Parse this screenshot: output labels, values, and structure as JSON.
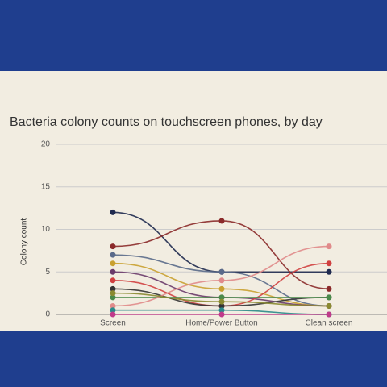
{
  "chart_data": {
    "type": "line",
    "title": "Bacteria colony counts on touchscreen phones, by day",
    "y_label": "Colony count",
    "categories": [
      "Screen",
      "Home/Power Button",
      "Clean screen"
    ],
    "ylim": [
      0,
      20
    ],
    "yticks": [
      0,
      5,
      10,
      15,
      20
    ],
    "grid": true,
    "series": [
      {
        "color": "#1f2a4f",
        "values": [
          12,
          5,
          5
        ]
      },
      {
        "color": "#8b2a2a",
        "values": [
          8,
          11,
          3
        ]
      },
      {
        "color": "#5a6a8a",
        "values": [
          7,
          5,
          1
        ]
      },
      {
        "color": "#c9a030",
        "values": [
          6,
          3,
          1
        ]
      },
      {
        "color": "#6a3a6a",
        "values": [
          5,
          2,
          1
        ]
      },
      {
        "color": "#d04040",
        "values": [
          4,
          1,
          6
        ]
      },
      {
        "color": "#333333",
        "values": [
          3,
          1,
          2
        ]
      },
      {
        "color": "#4a8a4a",
        "values": [
          2,
          2,
          2
        ]
      },
      {
        "color": "#e08a8a",
        "values": [
          1,
          4,
          8
        ]
      },
      {
        "color": "#2a8a8a",
        "values": [
          0.5,
          0.5,
          0
        ]
      },
      {
        "color": "#8a8a30",
        "values": [
          2.5,
          1.5,
          1
        ]
      },
      {
        "color": "#c03a8a",
        "values": [
          0,
          0,
          0
        ]
      }
    ]
  }
}
